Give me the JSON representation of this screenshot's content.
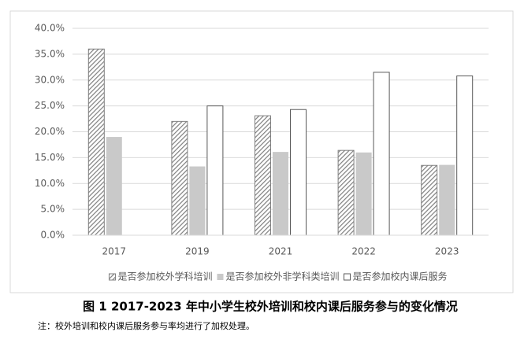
{
  "chart_data": {
    "type": "bar",
    "categories": [
      "2017",
      "2019",
      "2021",
      "2022",
      "2023"
    ],
    "series": [
      {
        "name": "是否参加校外学科培训",
        "color": "#7f7f7f",
        "pattern": "diagonal",
        "values": [
          36.0,
          22.0,
          23.1,
          16.4,
          13.5
        ]
      },
      {
        "name": "是否参加校外非学科类培训",
        "color": "#c9c9c9",
        "values": [
          19.0,
          13.3,
          16.1,
          16.0,
          13.6
        ]
      },
      {
        "name": "是否参加校内课后服务",
        "color": "#ffffff",
        "values": [
          null,
          25.0,
          24.3,
          31.5,
          30.8
        ]
      }
    ],
    "ylim": [
      0,
      40
    ],
    "yticks": [
      {
        "value": 0,
        "label": "0.0%"
      },
      {
        "value": 5,
        "label": "5.0%"
      },
      {
        "value": 10,
        "label": "10.0%"
      },
      {
        "value": 15,
        "label": "15.0%"
      },
      {
        "value": 20,
        "label": "20.0%"
      },
      {
        "value": 25,
        "label": "25.0%"
      },
      {
        "value": 30,
        "label": "30.0%"
      },
      {
        "value": 35,
        "label": "35.0%"
      },
      {
        "value": 40,
        "label": "40.0%"
      }
    ],
    "grid": true,
    "legend": "bottom",
    "caption": "图 1  2017-2023 年中小学生校外培训和校内课后服务参与的变化情况",
    "note": "注：校外培训和校内课后服务参与率均进行了加权处理。"
  }
}
